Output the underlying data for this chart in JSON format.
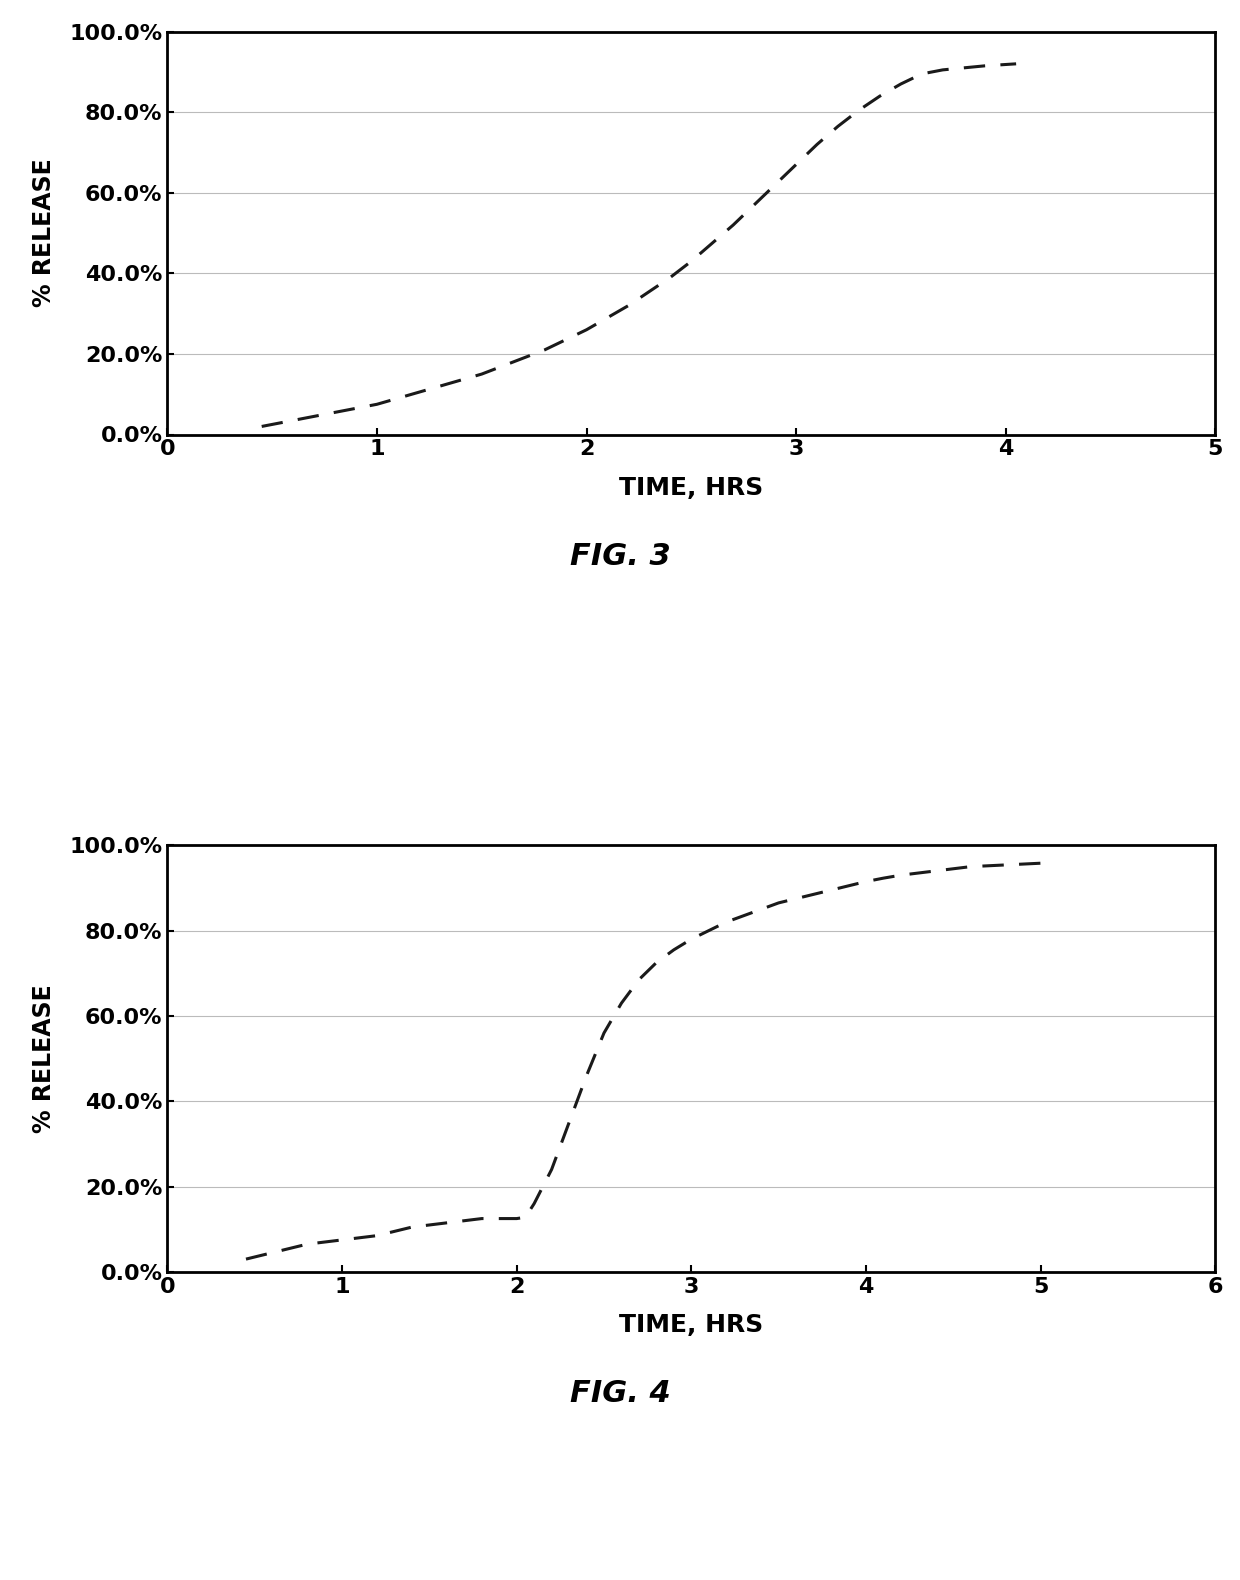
{
  "fig3": {
    "x": [
      0.45,
      0.5,
      0.6,
      0.7,
      0.8,
      0.9,
      1.0,
      1.1,
      1.2,
      1.3,
      1.4,
      1.5,
      1.6,
      1.7,
      1.8,
      1.9,
      2.0,
      2.1,
      2.2,
      2.3,
      2.4,
      2.5,
      2.6,
      2.7,
      2.8,
      2.9,
      3.0,
      3.1,
      3.2,
      3.3,
      3.4,
      3.5,
      3.6,
      3.7,
      3.8,
      3.9,
      4.05
    ],
    "y": [
      2.0,
      2.5,
      3.5,
      4.5,
      5.5,
      6.5,
      7.5,
      9.0,
      10.5,
      12.0,
      13.5,
      15.0,
      17.0,
      19.0,
      21.0,
      23.5,
      26.0,
      29.0,
      32.0,
      35.5,
      39.0,
      43.0,
      47.5,
      52.0,
      57.0,
      62.0,
      67.0,
      72.0,
      76.5,
      80.5,
      84.0,
      87.0,
      89.5,
      90.5,
      91.0,
      91.5,
      92.0
    ],
    "xlim": [
      0,
      5
    ],
    "ylim": [
      0,
      100
    ],
    "xticks": [
      0,
      1,
      2,
      3,
      4,
      5
    ],
    "yticks": [
      0.0,
      20.0,
      40.0,
      60.0,
      80.0,
      100.0
    ],
    "xlabel": "TIME, HRS",
    "ylabel": "% RELEASE",
    "caption": "FIG. 3",
    "line_color": "#1a1a1a",
    "line_style": "--",
    "line_width": 2.2
  },
  "fig4": {
    "x": [
      0.45,
      0.5,
      0.6,
      0.7,
      0.8,
      0.9,
      1.0,
      1.1,
      1.2,
      1.3,
      1.4,
      1.5,
      1.6,
      1.7,
      1.8,
      1.9,
      2.0,
      2.05,
      2.1,
      2.2,
      2.3,
      2.4,
      2.5,
      2.6,
      2.7,
      2.8,
      2.9,
      3.0,
      3.1,
      3.2,
      3.3,
      3.4,
      3.5,
      3.6,
      3.7,
      3.8,
      3.9,
      4.0,
      4.1,
      4.2,
      4.3,
      4.4,
      4.5,
      4.6,
      4.7,
      4.8,
      4.9,
      5.0
    ],
    "y": [
      3.0,
      3.5,
      4.5,
      5.5,
      6.5,
      7.0,
      7.5,
      8.0,
      8.5,
      9.5,
      10.5,
      11.0,
      11.5,
      12.0,
      12.5,
      12.5,
      12.5,
      12.8,
      16.0,
      24.0,
      35.0,
      46.0,
      56.0,
      63.0,
      68.5,
      72.5,
      75.5,
      78.0,
      80.0,
      82.0,
      83.5,
      85.0,
      86.5,
      87.5,
      88.5,
      89.5,
      90.5,
      91.5,
      92.3,
      93.0,
      93.5,
      94.0,
      94.5,
      95.0,
      95.2,
      95.4,
      95.6,
      95.8
    ],
    "xlim": [
      0,
      6
    ],
    "ylim": [
      0,
      100
    ],
    "xticks": [
      0,
      1,
      2,
      3,
      4,
      5,
      6
    ],
    "yticks": [
      0.0,
      20.0,
      40.0,
      60.0,
      80.0,
      100.0
    ],
    "xlabel": "TIME, HRS",
    "ylabel": "% RELEASE",
    "caption": "FIG. 4",
    "line_color": "#1a1a1a",
    "line_style": "--",
    "line_width": 2.2
  },
  "background_color": "#ffffff",
  "axis_label_fontsize": 18,
  "tick_fontsize": 16,
  "caption_fontsize": 22,
  "ylabel_fontsize": 17
}
